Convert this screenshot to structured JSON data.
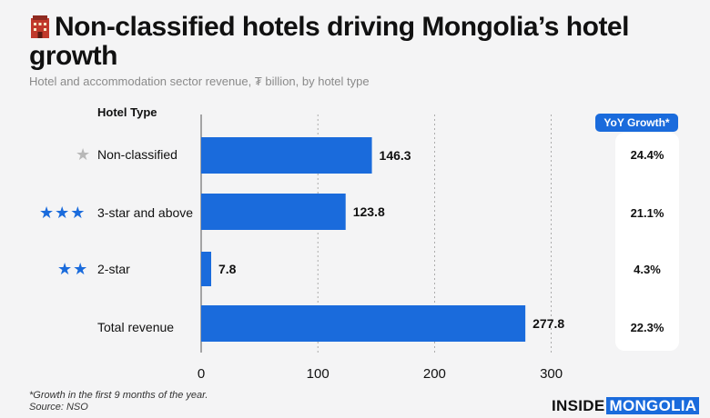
{
  "title": "Non-classified hotels driving Mongolia’s hotel growth",
  "subtitle": "Hotel and accommodation sector revenue, ₮ billion, by hotel type",
  "column_header": "Hotel Type",
  "yoy_header": "YoY Growth*",
  "footnote_line1": "*Growth in the first 9 months of the year.",
  "footnote_line2": "Source: NSO",
  "brand": {
    "part1": "INSIDE",
    "part2": "MONGOLIA"
  },
  "colors": {
    "bar": "#1a6bdc",
    "accent": "#1a6bdc",
    "star_grey": "#b8b8b8"
  },
  "rows": [
    {
      "label": "Non-classified",
      "stars": "★",
      "star_color": "grey",
      "yoy": "24.4%"
    },
    {
      "label": "3-star and above",
      "stars": "★★★",
      "star_color": "blue",
      "yoy": "21.1%"
    },
    {
      "label": "2-star",
      "stars": "★★",
      "star_color": "blue",
      "yoy": "4.3%"
    },
    {
      "label": "Total revenue",
      "stars": "",
      "star_color": "",
      "yoy": "22.3%"
    }
  ],
  "chart_data": {
    "type": "bar",
    "orientation": "horizontal",
    "categories": [
      "Non-classified",
      "3-star and above",
      "2-star",
      "Total revenue"
    ],
    "values": [
      146.3,
      123.8,
      7.8,
      277.8
    ],
    "value_labels": [
      "146.3",
      "123.8",
      "7.8",
      "277.8"
    ],
    "title": "Non-classified hotels driving Mongolia’s hotel growth",
    "xlabel": "",
    "ylabel": "Hotel Type",
    "xlim": [
      0,
      300
    ],
    "xticks": [
      0,
      100,
      200,
      300
    ],
    "xtick_labels": [
      "0",
      "100",
      "200",
      "300"
    ],
    "grid": "vertical dashed"
  }
}
